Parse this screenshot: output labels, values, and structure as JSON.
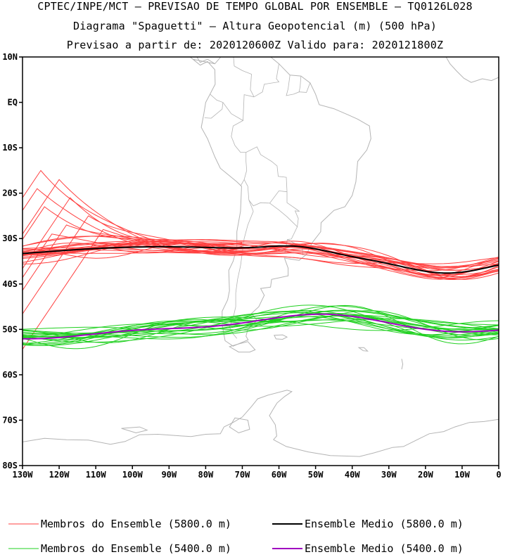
{
  "title": {
    "line1": "CPTEC/INPE/MCT – PREVISAO DE TEMPO GLOBAL POR ENSEMBLE – TQ0126L028",
    "line2": "Diagrama \"Spaguetti\" – Altura Geopotencial (m) (500 hPa)",
    "line3": "Previsao a partir de: 2020120600Z  Valido para: 2020121800Z"
  },
  "map": {
    "lon_range": [
      -130,
      0
    ],
    "lat_range": [
      -80,
      10
    ],
    "lat_ticks": [
      "10N",
      "EQ",
      "10S",
      "20S",
      "30S",
      "40S",
      "50S",
      "60S",
      "70S",
      "80S"
    ],
    "lon_ticks": [
      "130W",
      "120W",
      "110W",
      "100W",
      "90W",
      "80W",
      "70W",
      "60W",
      "50W",
      "40W",
      "30W",
      "20W",
      "10W",
      "0"
    ],
    "coastline_color": "#b4b4b4"
  },
  "series": {
    "members_5800": {
      "color": "#ff4040"
    },
    "mean_5800": {
      "color": "#000000"
    },
    "members_5400": {
      "color": "#20d020"
    },
    "mean_5400": {
      "color": "#a000c0"
    }
  },
  "legend": {
    "members_5800": "Membros do Ensemble (5800.0 m)",
    "mean_5800": "Ensemble Medio (5800.0 m)",
    "members_5400": "Membros do Ensemble (5400.0 m)",
    "mean_5400": "Ensemble Medio (5400.0 m)"
  }
}
